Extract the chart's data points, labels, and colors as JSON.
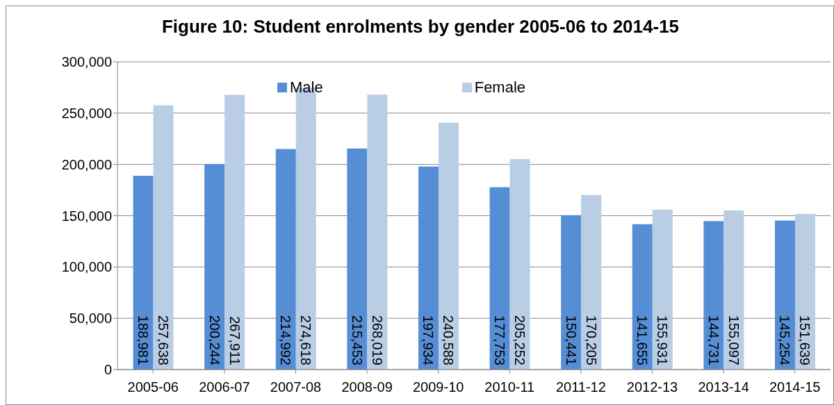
{
  "chart_data": {
    "type": "bar",
    "title": "Figure 10: Student enrolments by gender 2005-06 to 2014-15",
    "categories": [
      "2005-06",
      "2006-07",
      "2007-08",
      "2008-09",
      "2009-10",
      "2010-11",
      "2011-12",
      "2012-13",
      "2013-14",
      "2014-15"
    ],
    "series": [
      {
        "name": "Male",
        "color": "#558ed5",
        "values": [
          188981,
          200244,
          214992,
          215453,
          197934,
          177753,
          150441,
          141655,
          144731,
          145254
        ],
        "value_labels": [
          "188,981",
          "200,244",
          "214,992",
          "215,453",
          "197,934",
          "177,753",
          "150,441",
          "141,655",
          "144,731",
          "145,254"
        ]
      },
      {
        "name": "Female",
        "color": "#b9cde5",
        "values": [
          257638,
          267911,
          274618,
          268019,
          240588,
          205252,
          170205,
          155931,
          155097,
          151639
        ],
        "value_labels": [
          "257,638",
          "267,911",
          "274,618",
          "268,019",
          "240,588",
          "205,252",
          "170,205",
          "155,931",
          "155,097",
          "151,639"
        ]
      }
    ],
    "ylim": [
      0,
      300000
    ],
    "yticks": [
      0,
      {
        "value": 50000,
        "label": "50,000"
      },
      {
        "value": 100000,
        "label": "100,000"
      },
      {
        "value": 150000,
        "label": "150,000"
      },
      {
        "value": 200000,
        "label": "200,000"
      },
      {
        "value": 250000,
        "label": "250,000"
      },
      {
        "value": 300000,
        "label": "300,000"
      }
    ],
    "grid": "y",
    "legend": "top"
  }
}
